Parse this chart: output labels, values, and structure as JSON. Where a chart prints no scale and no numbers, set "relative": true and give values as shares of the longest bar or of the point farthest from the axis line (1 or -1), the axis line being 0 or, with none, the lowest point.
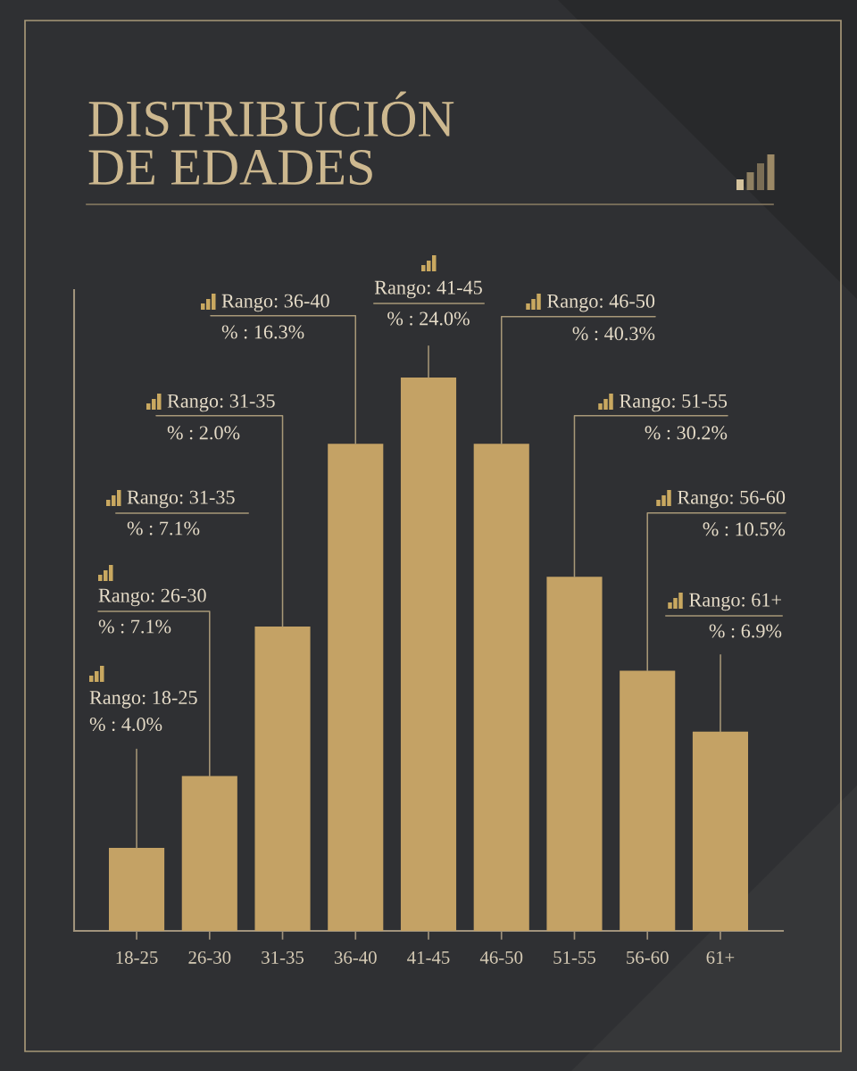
{
  "chart_data": {
    "type": "bar",
    "title": "DISTRIBUCIÓN\nDE EDADES",
    "categories": [
      "18-25",
      "26-30",
      "31-35",
      "36-40",
      "41-45",
      "46-50",
      "51-55",
      "56-60",
      "61+"
    ],
    "values": [
      0.15,
      0.28,
      0.55,
      0.88,
      1,
      0.88,
      0.64,
      0.47,
      0.36
    ],
    "color": "#c4a265",
    "relative": true,
    "tick_labels": "x",
    "annotations": [
      {
        "text": "Rango: 18-25\n% : 4.0%",
        "x": "18-25",
        "y": 0.15
      },
      {
        "text": "Rango: 26-30\n% : 7.1%",
        "x": "26-30",
        "y": 0.28
      },
      "Rango: 31-35\n% : 7.1%",
      {
        "text": "Rango: 31-35\n% : 2.0%",
        "x": "31-35",
        "y": 0.55
      },
      {
        "text": "Rango: 36-40\n% : 16.3%",
        "x": "36-40",
        "y": 0.88
      },
      {
        "text": "Rango: 41-45\n% : 24.0%",
        "x": "41-45",
        "y": 1
      },
      {
        "text": "Rango: 46-50\n% : 40.3%",
        "x": "46-50",
        "y": 0.88
      },
      {
        "text": "Rango: 51-55\n% : 30.2%",
        "x": "51-55",
        "y": 0.64
      },
      {
        "text": "Rango: 56-60\n% : 10.5%",
        "x": "56-60",
        "y": 0.47
      },
      {
        "text": "Rango: 61+\n% : 6.9%",
        "x": "61+",
        "y": 0.36
      }
    ]
  }
}
